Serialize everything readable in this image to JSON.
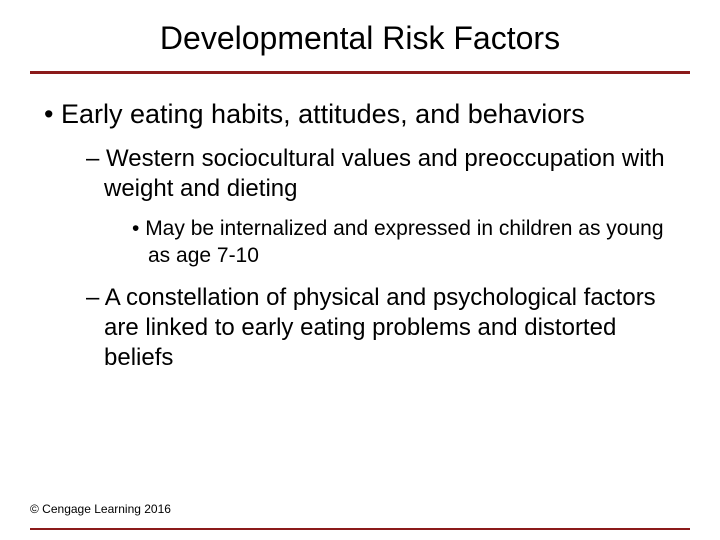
{
  "title": "Developmental Risk Factors",
  "rule_color": "#8b1a1a",
  "background_color": "#ffffff",
  "text_color": "#000000",
  "font_family": "Arial",
  "bullets": {
    "lvl1": {
      "text": "Early eating habits, attitudes, and behaviors",
      "fontsize": 27
    },
    "lvl2a": {
      "text": "Western sociocultural values and preoccupation with weight and dieting",
      "fontsize": 24
    },
    "lvl3a": {
      "text": "May be internalized and expressed in children as young as age 7-10",
      "fontsize": 21
    },
    "lvl2b": {
      "text": "A constellation of physical and psychological factors are linked to early eating problems and distorted beliefs",
      "fontsize": 24
    }
  },
  "copyright": "© Cengage Learning 2016",
  "copyright_fontsize": 12
}
